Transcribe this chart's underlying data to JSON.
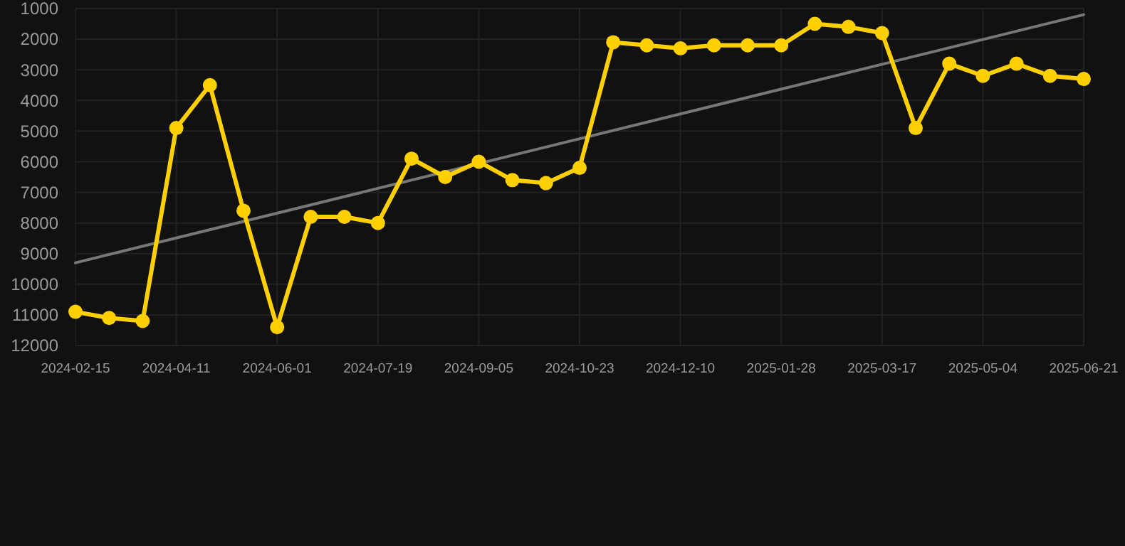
{
  "chart_data": {
    "type": "line",
    "categories": [
      "2024-02-15",
      null,
      null,
      "2024-04-11",
      null,
      null,
      "2024-06-01",
      null,
      null,
      "2024-07-19",
      null,
      null,
      "2024-09-05",
      null,
      null,
      "2024-10-23",
      null,
      null,
      "2024-12-10",
      null,
      null,
      "2025-01-28",
      null,
      null,
      "2025-03-17",
      null,
      null,
      "2025-05-04",
      null,
      null,
      "2025-06-21"
    ],
    "series": [
      {
        "color": "#ffd000",
        "marker": "circle",
        "values": [
          10900,
          11100,
          11200,
          4900,
          3500,
          7600,
          11400,
          7800,
          7800,
          8000,
          5900,
          6500,
          6000,
          6600,
          6700,
          6200,
          2100,
          2200,
          2300,
          2200,
          2200,
          2200,
          1500,
          1600,
          1800,
          4900,
          2800,
          3200,
          2800,
          3200,
          3300
        ]
      },
      {
        "type": "line",
        "color": "#777777",
        "marker": "none",
        "values": [
          9300,
          null,
          null,
          null,
          null,
          null,
          null,
          null,
          null,
          null,
          null,
          null,
          null,
          null,
          null,
          null,
          null,
          null,
          null,
          null,
          null,
          null,
          null,
          null,
          null,
          null,
          null,
          null,
          null,
          null,
          1200
        ]
      }
    ],
    "ylim": [
      12000,
      1000
    ],
    "yticks": [
      1000,
      2000,
      3000,
      4000,
      5000,
      6000,
      7000,
      8000,
      9000,
      10000,
      11000,
      12000
    ],
    "grid": true
  }
}
